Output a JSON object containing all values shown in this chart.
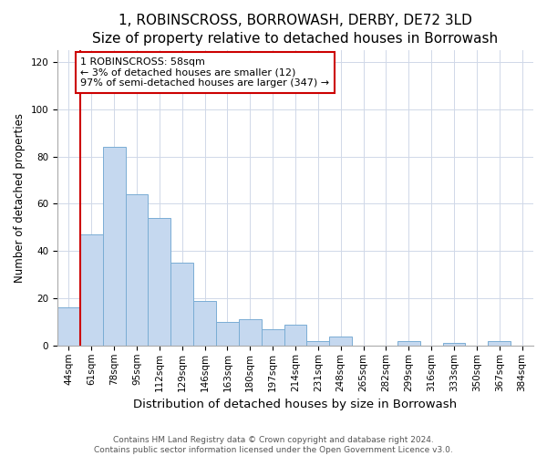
{
  "title": "1, ROBINSCROSS, BORROWASH, DERBY, DE72 3LD",
  "subtitle": "Size of property relative to detached houses in Borrowash",
  "xlabel": "Distribution of detached houses by size in Borrowash",
  "ylabel": "Number of detached properties",
  "bar_labels": [
    "44sqm",
    "61sqm",
    "78sqm",
    "95sqm",
    "112sqm",
    "129sqm",
    "146sqm",
    "163sqm",
    "180sqm",
    "197sqm",
    "214sqm",
    "231sqm",
    "248sqm",
    "265sqm",
    "282sqm",
    "299sqm",
    "316sqm",
    "333sqm",
    "350sqm",
    "367sqm",
    "384sqm"
  ],
  "bar_values": [
    16,
    47,
    84,
    64,
    54,
    35,
    19,
    10,
    11,
    7,
    9,
    2,
    4,
    0,
    0,
    2,
    0,
    1,
    0,
    2,
    0
  ],
  "bar_color": "#c5d8ef",
  "bar_edge_color": "#7aadd4",
  "highlight_bar_edge_color": "#cc0000",
  "annotation_box_text": "1 ROBINSCROSS: 58sqm\n← 3% of detached houses are smaller (12)\n97% of semi-detached houses are larger (347) →",
  "vline_color": "#cc0000",
  "ylim": [
    0,
    125
  ],
  "yticks": [
    0,
    20,
    40,
    60,
    80,
    100,
    120
  ],
  "footer_line1": "Contains HM Land Registry data © Crown copyright and database right 2024.",
  "footer_line2": "Contains public sector information licensed under the Open Government Licence v3.0.",
  "title_fontsize": 11,
  "subtitle_fontsize": 9.5,
  "xlabel_fontsize": 9.5,
  "ylabel_fontsize": 8.5,
  "tick_fontsize": 7.5,
  "annotation_fontsize": 8,
  "footer_fontsize": 6.5
}
